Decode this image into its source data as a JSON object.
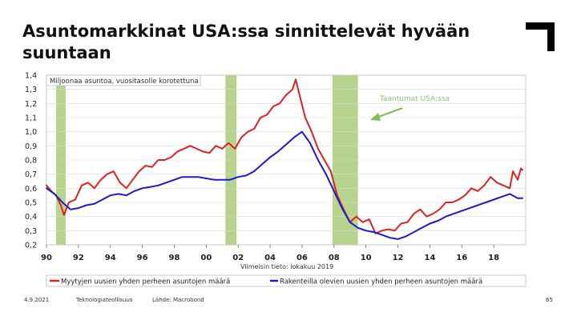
{
  "slide": {
    "title": "Asuntomarkkinat USA:ssa sinnittelevät hyvään suuntaan"
  },
  "footer": {
    "date": "4.9.2021",
    "organization": "Teknologiateollisuus",
    "source": "Lähde: Macrobond",
    "page_number": "65"
  },
  "colors": {
    "sold": "#e02020",
    "construction": "#1a1ad0",
    "recession": "#a9cc7a",
    "grid": "#d9d9d9",
    "annotation_arrow": "#7cbf52",
    "annotation_text": "#8bc46a"
  },
  "chart_data": {
    "type": "line",
    "ylabel": "Miljoonaa asuntoa, vuositasolle korotettuna",
    "ylim": [
      0.2,
      1.4
    ],
    "yticks": [
      0.2,
      0.3,
      0.4,
      0.5,
      0.6,
      0.7,
      0.8,
      0.9,
      1.0,
      1.1,
      1.2,
      1.3,
      1.4
    ],
    "ytick_labels": [
      "0,2",
      "0,3",
      "0,4",
      "0,5",
      "0,6",
      "0,7",
      "0,8",
      "0,9",
      "1,0",
      "1,1",
      "1,2",
      "1,3",
      "1,4"
    ],
    "xlim": [
      1990,
      2020
    ],
    "xticks": [
      1990,
      1992,
      1994,
      1996,
      1998,
      2000,
      2002,
      2004,
      2006,
      2008,
      2010,
      2012,
      2014,
      2016,
      2018
    ],
    "xtick_labels": [
      "90",
      "92",
      "94",
      "96",
      "98",
      "00",
      "02",
      "04",
      "06",
      "08",
      "10",
      "12",
      "14",
      "16",
      "18"
    ],
    "grid": true,
    "note": "Viimeisin tieto: lokakuu 2019",
    "annotation": "Taantumat USA:ssa",
    "recessions": [
      [
        1990.6,
        1991.2
      ],
      [
        2001.2,
        2001.9
      ],
      [
        2007.9,
        2009.5
      ]
    ],
    "legend_position": "bottom",
    "series": [
      {
        "name": "Myytyjen uusien yhden perheen asuntojen määrä",
        "color_key": "sold",
        "points": [
          [
            1990.0,
            0.62
          ],
          [
            1990.3,
            0.58
          ],
          [
            1990.6,
            0.55
          ],
          [
            1990.9,
            0.48
          ],
          [
            1991.1,
            0.41
          ],
          [
            1991.4,
            0.5
          ],
          [
            1991.8,
            0.52
          ],
          [
            1992.2,
            0.62
          ],
          [
            1992.6,
            0.64
          ],
          [
            1993.0,
            0.6
          ],
          [
            1993.4,
            0.66
          ],
          [
            1993.8,
            0.7
          ],
          [
            1994.2,
            0.72
          ],
          [
            1994.6,
            0.64
          ],
          [
            1995.0,
            0.6
          ],
          [
            1995.4,
            0.66
          ],
          [
            1995.8,
            0.72
          ],
          [
            1996.2,
            0.76
          ],
          [
            1996.6,
            0.75
          ],
          [
            1997.0,
            0.8
          ],
          [
            1997.4,
            0.8
          ],
          [
            1997.8,
            0.82
          ],
          [
            1998.2,
            0.86
          ],
          [
            1998.6,
            0.88
          ],
          [
            1999.0,
            0.9
          ],
          [
            1999.4,
            0.88
          ],
          [
            1999.8,
            0.86
          ],
          [
            2000.2,
            0.85
          ],
          [
            2000.6,
            0.9
          ],
          [
            2001.0,
            0.88
          ],
          [
            2001.4,
            0.92
          ],
          [
            2001.8,
            0.88
          ],
          [
            2002.2,
            0.96
          ],
          [
            2002.6,
            1.0
          ],
          [
            2003.0,
            1.02
          ],
          [
            2003.4,
            1.1
          ],
          [
            2003.8,
            1.12
          ],
          [
            2004.2,
            1.18
          ],
          [
            2004.6,
            1.2
          ],
          [
            2005.0,
            1.26
          ],
          [
            2005.4,
            1.3
          ],
          [
            2005.6,
            1.37
          ],
          [
            2005.8,
            1.28
          ],
          [
            2006.2,
            1.1
          ],
          [
            2006.6,
            1.0
          ],
          [
            2007.0,
            0.88
          ],
          [
            2007.4,
            0.8
          ],
          [
            2007.8,
            0.72
          ],
          [
            2008.2,
            0.55
          ],
          [
            2008.6,
            0.45
          ],
          [
            2009.0,
            0.36
          ],
          [
            2009.4,
            0.4
          ],
          [
            2009.8,
            0.36
          ],
          [
            2010.2,
            0.38
          ],
          [
            2010.6,
            0.28
          ],
          [
            2011.0,
            0.3
          ],
          [
            2011.4,
            0.31
          ],
          [
            2011.8,
            0.3
          ],
          [
            2012.2,
            0.35
          ],
          [
            2012.6,
            0.36
          ],
          [
            2013.0,
            0.42
          ],
          [
            2013.4,
            0.45
          ],
          [
            2013.8,
            0.4
          ],
          [
            2014.2,
            0.42
          ],
          [
            2014.6,
            0.45
          ],
          [
            2015.0,
            0.5
          ],
          [
            2015.4,
            0.5
          ],
          [
            2015.8,
            0.52
          ],
          [
            2016.2,
            0.55
          ],
          [
            2016.6,
            0.6
          ],
          [
            2017.0,
            0.58
          ],
          [
            2017.4,
            0.62
          ],
          [
            2017.8,
            0.68
          ],
          [
            2018.2,
            0.64
          ],
          [
            2018.6,
            0.62
          ],
          [
            2019.0,
            0.6
          ],
          [
            2019.2,
            0.72
          ],
          [
            2019.5,
            0.66
          ],
          [
            2019.7,
            0.74
          ],
          [
            2019.8,
            0.73
          ]
        ]
      },
      {
        "name": "Rakenteilla olevien uusien yhden perheen asuntojen määrä",
        "color_key": "construction",
        "points": [
          [
            1990.0,
            0.6
          ],
          [
            1990.5,
            0.56
          ],
          [
            1991.0,
            0.5
          ],
          [
            1991.5,
            0.45
          ],
          [
            1992.0,
            0.46
          ],
          [
            1992.5,
            0.48
          ],
          [
            1993.0,
            0.49
          ],
          [
            1993.5,
            0.52
          ],
          [
            1994.0,
            0.55
          ],
          [
            1994.5,
            0.56
          ],
          [
            1995.0,
            0.55
          ],
          [
            1995.5,
            0.58
          ],
          [
            1996.0,
            0.6
          ],
          [
            1996.5,
            0.61
          ],
          [
            1997.0,
            0.62
          ],
          [
            1997.5,
            0.64
          ],
          [
            1998.0,
            0.66
          ],
          [
            1998.5,
            0.68
          ],
          [
            1999.0,
            0.68
          ],
          [
            1999.5,
            0.68
          ],
          [
            2000.0,
            0.67
          ],
          [
            2000.5,
            0.66
          ],
          [
            2001.0,
            0.66
          ],
          [
            2001.5,
            0.66
          ],
          [
            2002.0,
            0.68
          ],
          [
            2002.5,
            0.69
          ],
          [
            2003.0,
            0.72
          ],
          [
            2003.5,
            0.77
          ],
          [
            2004.0,
            0.82
          ],
          [
            2004.5,
            0.86
          ],
          [
            2005.0,
            0.91
          ],
          [
            2005.5,
            0.96
          ],
          [
            2006.0,
            1.0
          ],
          [
            2006.5,
            0.92
          ],
          [
            2007.0,
            0.8
          ],
          [
            2007.5,
            0.7
          ],
          [
            2008.0,
            0.58
          ],
          [
            2008.5,
            0.46
          ],
          [
            2009.0,
            0.36
          ],
          [
            2009.5,
            0.32
          ],
          [
            2010.0,
            0.3
          ],
          [
            2010.5,
            0.29
          ],
          [
            2011.0,
            0.27
          ],
          [
            2011.5,
            0.25
          ],
          [
            2012.0,
            0.24
          ],
          [
            2012.5,
            0.26
          ],
          [
            2013.0,
            0.29
          ],
          [
            2013.5,
            0.32
          ],
          [
            2014.0,
            0.35
          ],
          [
            2014.5,
            0.37
          ],
          [
            2015.0,
            0.4
          ],
          [
            2015.5,
            0.42
          ],
          [
            2016.0,
            0.44
          ],
          [
            2016.5,
            0.46
          ],
          [
            2017.0,
            0.48
          ],
          [
            2017.5,
            0.5
          ],
          [
            2018.0,
            0.52
          ],
          [
            2018.5,
            0.54
          ],
          [
            2019.0,
            0.56
          ],
          [
            2019.5,
            0.53
          ],
          [
            2019.8,
            0.53
          ]
        ]
      }
    ]
  }
}
